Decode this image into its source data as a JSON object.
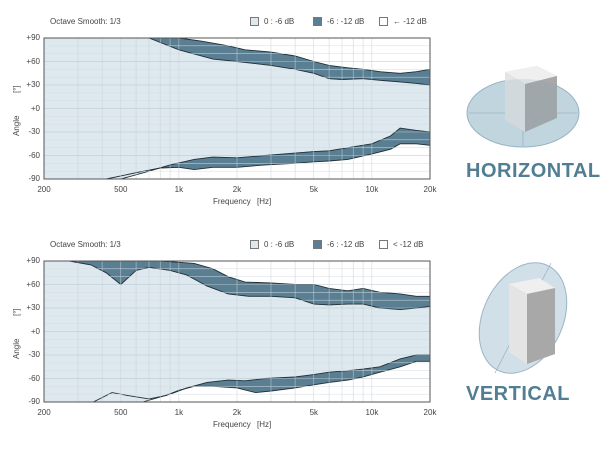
{
  "chart_data": [
    {
      "type": "area",
      "panel": "horizontal",
      "header": "Octave Smooth: 1/3",
      "xlabel": "Frequency",
      "xunit": "[Hz]",
      "ylabel": "Angle",
      "yunit": "[°]",
      "xscale": "log",
      "xlim": [
        200,
        20000
      ],
      "ylim": [
        -90,
        90
      ],
      "xticks": [
        200,
        500,
        1000,
        2000,
        5000,
        10000,
        20000
      ],
      "xtick_labels": [
        "200",
        "500",
        "1k",
        "2k",
        "5k",
        "10k",
        "20k"
      ],
      "yticks": [
        90,
        60,
        30,
        0,
        -30,
        -60,
        -90
      ],
      "ytick_labels": [
        "+90",
        "+60",
        "+30",
        "+0",
        "-30",
        "-60",
        "-90"
      ],
      "grid": true,
      "legend_position": "top",
      "legend": [
        {
          "label": "0 : -6 dB",
          "color": "#dde8ef"
        },
        {
          "label": "-6 : -12 dB",
          "color": "#5a7f92"
        },
        {
          "label": "← -12 dB",
          "color": "#ffffff"
        }
      ],
      "series": [
        {
          "band": "0 : -6 dB",
          "edge": "upper",
          "values": [
            [
              700,
              90
            ],
            [
              1000,
              75
            ],
            [
              1500,
              63
            ],
            [
              2000,
              60
            ],
            [
              3000,
              55
            ],
            [
              4000,
              50
            ],
            [
              5000,
              45
            ],
            [
              6000,
              38
            ],
            [
              7000,
              37
            ],
            [
              9000,
              38
            ],
            [
              11000,
              36
            ],
            [
              14000,
              34
            ],
            [
              17000,
              32
            ],
            [
              20000,
              30
            ]
          ]
        },
        {
          "band": "-6 : -12 dB",
          "edge": "upper",
          "values": [
            [
              820,
              90
            ],
            [
              1000,
              90
            ],
            [
              1300,
              86
            ],
            [
              1800,
              80
            ],
            [
              2200,
              75
            ],
            [
              3000,
              72
            ],
            [
              4000,
              67
            ],
            [
              5000,
              60
            ],
            [
              6000,
              55
            ],
            [
              7500,
              52
            ],
            [
              9000,
              50
            ],
            [
              11000,
              47
            ],
            [
              14000,
              45
            ],
            [
              17000,
              47
            ],
            [
              20000,
              50
            ]
          ]
        },
        {
          "band": "0 : -6 dB",
          "edge": "lower",
          "values": [
            [
              500,
              -90
            ],
            [
              700,
              -80
            ],
            [
              900,
              -72
            ],
            [
              1200,
              -65
            ],
            [
              1500,
              -62
            ],
            [
              2000,
              -63
            ],
            [
              2800,
              -60
            ],
            [
              4000,
              -57
            ],
            [
              5000,
              -55
            ],
            [
              6000,
              -54
            ],
            [
              7500,
              -50
            ],
            [
              10000,
              -45
            ],
            [
              12500,
              -35
            ],
            [
              14000,
              -25
            ],
            [
              17000,
              -28
            ],
            [
              20000,
              -30
            ]
          ]
        },
        {
          "band": "-6 : -12 dB",
          "edge": "lower",
          "values": [
            [
              420,
              -90
            ],
            [
              600,
              -82
            ],
            [
              800,
              -76
            ],
            [
              1000,
              -75
            ],
            [
              1200,
              -78
            ],
            [
              1500,
              -75
            ],
            [
              2000,
              -75
            ],
            [
              2800,
              -72
            ],
            [
              4000,
              -70
            ],
            [
              5000,
              -68
            ],
            [
              6000,
              -67
            ],
            [
              7500,
              -65
            ],
            [
              10000,
              -58
            ],
            [
              12500,
              -52
            ],
            [
              14000,
              -45
            ],
            [
              17000,
              -45
            ],
            [
              20000,
              -47
            ]
          ]
        }
      ]
    },
    {
      "type": "area",
      "panel": "vertical",
      "header": "Octave Smooth: 1/3",
      "xlabel": "Frequency",
      "xunit": "[Hz]",
      "ylabel": "Angle",
      "yunit": "[°]",
      "xscale": "log",
      "xlim": [
        200,
        20000
      ],
      "ylim": [
        -90,
        90
      ],
      "xticks": [
        200,
        500,
        1000,
        2000,
        5000,
        10000,
        20000
      ],
      "xtick_labels": [
        "200",
        "500",
        "1k",
        "2k",
        "5k",
        "10k",
        "20k"
      ],
      "yticks": [
        90,
        60,
        30,
        0,
        -30,
        -60,
        -90
      ],
      "ytick_labels": [
        "+90",
        "+60",
        "+30",
        "+0",
        "-30",
        "-60",
        "-90"
      ],
      "grid": true,
      "legend_position": "top",
      "legend": [
        {
          "label": "0 : -6 dB",
          "color": "#dde8ef"
        },
        {
          "label": "-6 : -12 dB",
          "color": "#5a7f92"
        },
        {
          "label": "< -12 dB",
          "color": "#ffffff"
        }
      ],
      "series": [
        {
          "band": "0 : -6 dB",
          "edge": "upper",
          "values": [
            [
              270,
              90
            ],
            [
              350,
              85
            ],
            [
              420,
              75
            ],
            [
              500,
              60
            ],
            [
              600,
              78
            ],
            [
              700,
              82
            ],
            [
              900,
              78
            ],
            [
              1100,
              72
            ],
            [
              1400,
              58
            ],
            [
              1800,
              48
            ],
            [
              2300,
              45
            ],
            [
              3000,
              45
            ],
            [
              4000,
              43
            ],
            [
              5000,
              35
            ],
            [
              6000,
              34
            ],
            [
              7500,
              35
            ],
            [
              9000,
              35
            ],
            [
              11000,
              30
            ],
            [
              14000,
              28
            ],
            [
              17000,
              30
            ],
            [
              20000,
              32
            ]
          ]
        },
        {
          "band": "-6 : -12 dB",
          "edge": "upper",
          "values": [
            [
              800,
              90
            ],
            [
              1200,
              87
            ],
            [
              1500,
              80
            ],
            [
              1800,
              70
            ],
            [
              2200,
              63
            ],
            [
              3000,
              62
            ],
            [
              4000,
              60
            ],
            [
              5000,
              60
            ],
            [
              6000,
              55
            ],
            [
              7500,
              52
            ],
            [
              9000,
              55
            ],
            [
              11000,
              50
            ],
            [
              14000,
              48
            ],
            [
              17000,
              45
            ],
            [
              20000,
              45
            ]
          ]
        },
        {
          "band": "0 : -6 dB",
          "edge": "lower",
          "values": [
            [
              650,
              -90
            ],
            [
              900,
              -80
            ],
            [
              1100,
              -72
            ],
            [
              1400,
              -65
            ],
            [
              1800,
              -62
            ],
            [
              2200,
              -63
            ],
            [
              2800,
              -60
            ],
            [
              4000,
              -58
            ],
            [
              5000,
              -55
            ],
            [
              6000,
              -52
            ],
            [
              7500,
              -50
            ],
            [
              9000,
              -48
            ],
            [
              11000,
              -45
            ],
            [
              14000,
              -35
            ],
            [
              17000,
              -30
            ],
            [
              20000,
              -30
            ]
          ]
        },
        {
          "band": "-6 : -12 dB",
          "edge": "lower",
          "values": [
            [
              360,
              -90
            ],
            [
              450,
              -78
            ],
            [
              550,
              -82
            ],
            [
              700,
              -86
            ],
            [
              850,
              -82
            ],
            [
              1000,
              -75
            ],
            [
              1200,
              -70
            ],
            [
              1500,
              -70
            ],
            [
              2000,
              -72
            ],
            [
              2500,
              -78
            ],
            [
              3000,
              -76
            ],
            [
              4000,
              -72
            ],
            [
              5000,
              -68
            ],
            [
              6000,
              -65
            ],
            [
              7500,
              -62
            ],
            [
              9000,
              -58
            ],
            [
              11000,
              -52
            ],
            [
              14000,
              -45
            ],
            [
              17000,
              -38
            ],
            [
              20000,
              -38
            ]
          ]
        }
      ]
    }
  ],
  "side_labels": {
    "horizontal": "HORIZONTAL",
    "vertical": "VERTICAL"
  },
  "icons": {
    "horizontal": "speaker-horizontal-dispersion-icon",
    "vertical": "speaker-vertical-dispersion-icon"
  },
  "colors": {
    "band_inner": "#dde8ef",
    "band_outer": "#5a7f92",
    "outside": "#ffffff",
    "title": "#527e93"
  }
}
